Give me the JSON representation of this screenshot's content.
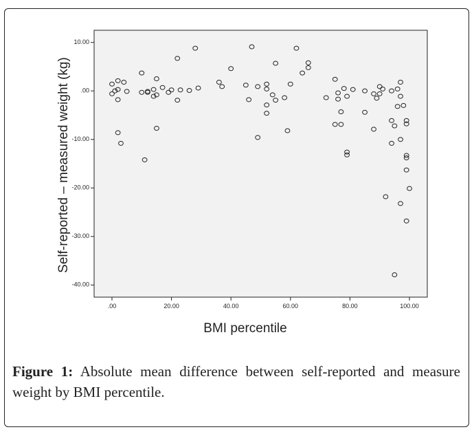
{
  "chart_data": {
    "type": "scatter",
    "xlabel": "BMI percentile",
    "ylabel": "Self-reported – measured weight (kg)",
    "xlim": [
      -6,
      106
    ],
    "ylim": [
      -42.5,
      12.5
    ],
    "x_ticks": [
      0,
      20,
      40,
      60,
      80,
      100
    ],
    "x_tick_labels": [
      ".00",
      "20.00",
      "40.00",
      "60.00",
      "80.00",
      "100.00"
    ],
    "y_ticks": [
      10,
      0,
      -10,
      -20,
      -30,
      -40
    ],
    "y_tick_labels": [
      "10.00",
      ".00",
      "-10.00",
      "-20.00",
      "-30.00",
      "-40.00"
    ],
    "grid": false,
    "marker": "open circle",
    "plot_background": "#f2f2f2",
    "colors": {
      "marker": "#222222",
      "axis": "#222222",
      "text": "#222222"
    },
    "points": [
      {
        "x": 0,
        "y": 1.4
      },
      {
        "x": 0,
        "y": -0.6
      },
      {
        "x": 1,
        "y": 0
      },
      {
        "x": 2,
        "y": 0.3
      },
      {
        "x": 2,
        "y": 2.1
      },
      {
        "x": 2,
        "y": -1.8
      },
      {
        "x": 2,
        "y": -8.6
      },
      {
        "x": 3,
        "y": -10.8
      },
      {
        "x": 4,
        "y": 1.8
      },
      {
        "x": 5,
        "y": -0.1
      },
      {
        "x": 10,
        "y": 3.7
      },
      {
        "x": 10,
        "y": -0.3
      },
      {
        "x": 11,
        "y": -14.2
      },
      {
        "x": 12,
        "y": -0.3
      },
      {
        "x": 12,
        "y": -0.1
      },
      {
        "x": 14,
        "y": -1.1
      },
      {
        "x": 14,
        "y": 0.3
      },
      {
        "x": 15,
        "y": -0.8
      },
      {
        "x": 15,
        "y": 2.5
      },
      {
        "x": 15,
        "y": -7.7
      },
      {
        "x": 17,
        "y": 0.7
      },
      {
        "x": 19,
        "y": -0.3
      },
      {
        "x": 20,
        "y": 0.2
      },
      {
        "x": 22,
        "y": 6.7
      },
      {
        "x": 22,
        "y": -1.9
      },
      {
        "x": 23,
        "y": 0.2
      },
      {
        "x": 26,
        "y": 0.1
      },
      {
        "x": 28,
        "y": 8.8
      },
      {
        "x": 29,
        "y": 0.6
      },
      {
        "x": 36,
        "y": 1.8
      },
      {
        "x": 37,
        "y": 0.9
      },
      {
        "x": 40,
        "y": 4.6
      },
      {
        "x": 45,
        "y": 1.2
      },
      {
        "x": 46,
        "y": -1.8
      },
      {
        "x": 47,
        "y": 9.1
      },
      {
        "x": 49,
        "y": 0.9
      },
      {
        "x": 49,
        "y": -9.6
      },
      {
        "x": 52,
        "y": 0.4
      },
      {
        "x": 52,
        "y": 1.4
      },
      {
        "x": 52,
        "y": -2.9
      },
      {
        "x": 52,
        "y": -4.6
      },
      {
        "x": 54,
        "y": -0.8
      },
      {
        "x": 55,
        "y": 5.7
      },
      {
        "x": 55,
        "y": -1.9
      },
      {
        "x": 58,
        "y": -1.4
      },
      {
        "x": 59,
        "y": -8.2
      },
      {
        "x": 60,
        "y": 1.4
      },
      {
        "x": 62,
        "y": 8.8
      },
      {
        "x": 64,
        "y": 3.7
      },
      {
        "x": 66,
        "y": 5.8
      },
      {
        "x": 66,
        "y": 4.8
      },
      {
        "x": 72,
        "y": -1.4
      },
      {
        "x": 75,
        "y": 2.4
      },
      {
        "x": 75,
        "y": -6.9
      },
      {
        "x": 76,
        "y": -0.4
      },
      {
        "x": 76,
        "y": -1.7
      },
      {
        "x": 77,
        "y": -4.3
      },
      {
        "x": 77,
        "y": -6.9
      },
      {
        "x": 78,
        "y": 0.5
      },
      {
        "x": 79,
        "y": -1.1
      },
      {
        "x": 79,
        "y": -12.6
      },
      {
        "x": 79,
        "y": -13.2
      },
      {
        "x": 81,
        "y": 0.3
      },
      {
        "x": 85,
        "y": 0
      },
      {
        "x": 85,
        "y": -4.4
      },
      {
        "x": 88,
        "y": -0.6
      },
      {
        "x": 88,
        "y": -7.9
      },
      {
        "x": 89,
        "y": -1.5
      },
      {
        "x": 90,
        "y": 0.9
      },
      {
        "x": 90,
        "y": -0.6
      },
      {
        "x": 91,
        "y": 0.4
      },
      {
        "x": 92,
        "y": -21.8
      },
      {
        "x": 94,
        "y": 0
      },
      {
        "x": 94,
        "y": -6.1
      },
      {
        "x": 94,
        "y": -10.8
      },
      {
        "x": 95,
        "y": -7.2
      },
      {
        "x": 95,
        "y": -37.9
      },
      {
        "x": 96,
        "y": 0.4
      },
      {
        "x": 96,
        "y": -3.2
      },
      {
        "x": 97,
        "y": 1.8
      },
      {
        "x": 97,
        "y": -1.1
      },
      {
        "x": 97,
        "y": -10
      },
      {
        "x": 97,
        "y": -23.2
      },
      {
        "x": 98,
        "y": -3
      },
      {
        "x": 99,
        "y": -6.1
      },
      {
        "x": 99,
        "y": -6.8
      },
      {
        "x": 99,
        "y": -13.3
      },
      {
        "x": 99,
        "y": -13.8
      },
      {
        "x": 99,
        "y": -16.3
      },
      {
        "x": 99,
        "y": -26.8
      },
      {
        "x": 100,
        "y": -20.1
      }
    ]
  },
  "caption": {
    "label": "Figure 1:",
    "text": "Absolute mean difference between self-reported and measure weight by BMI percentile."
  }
}
